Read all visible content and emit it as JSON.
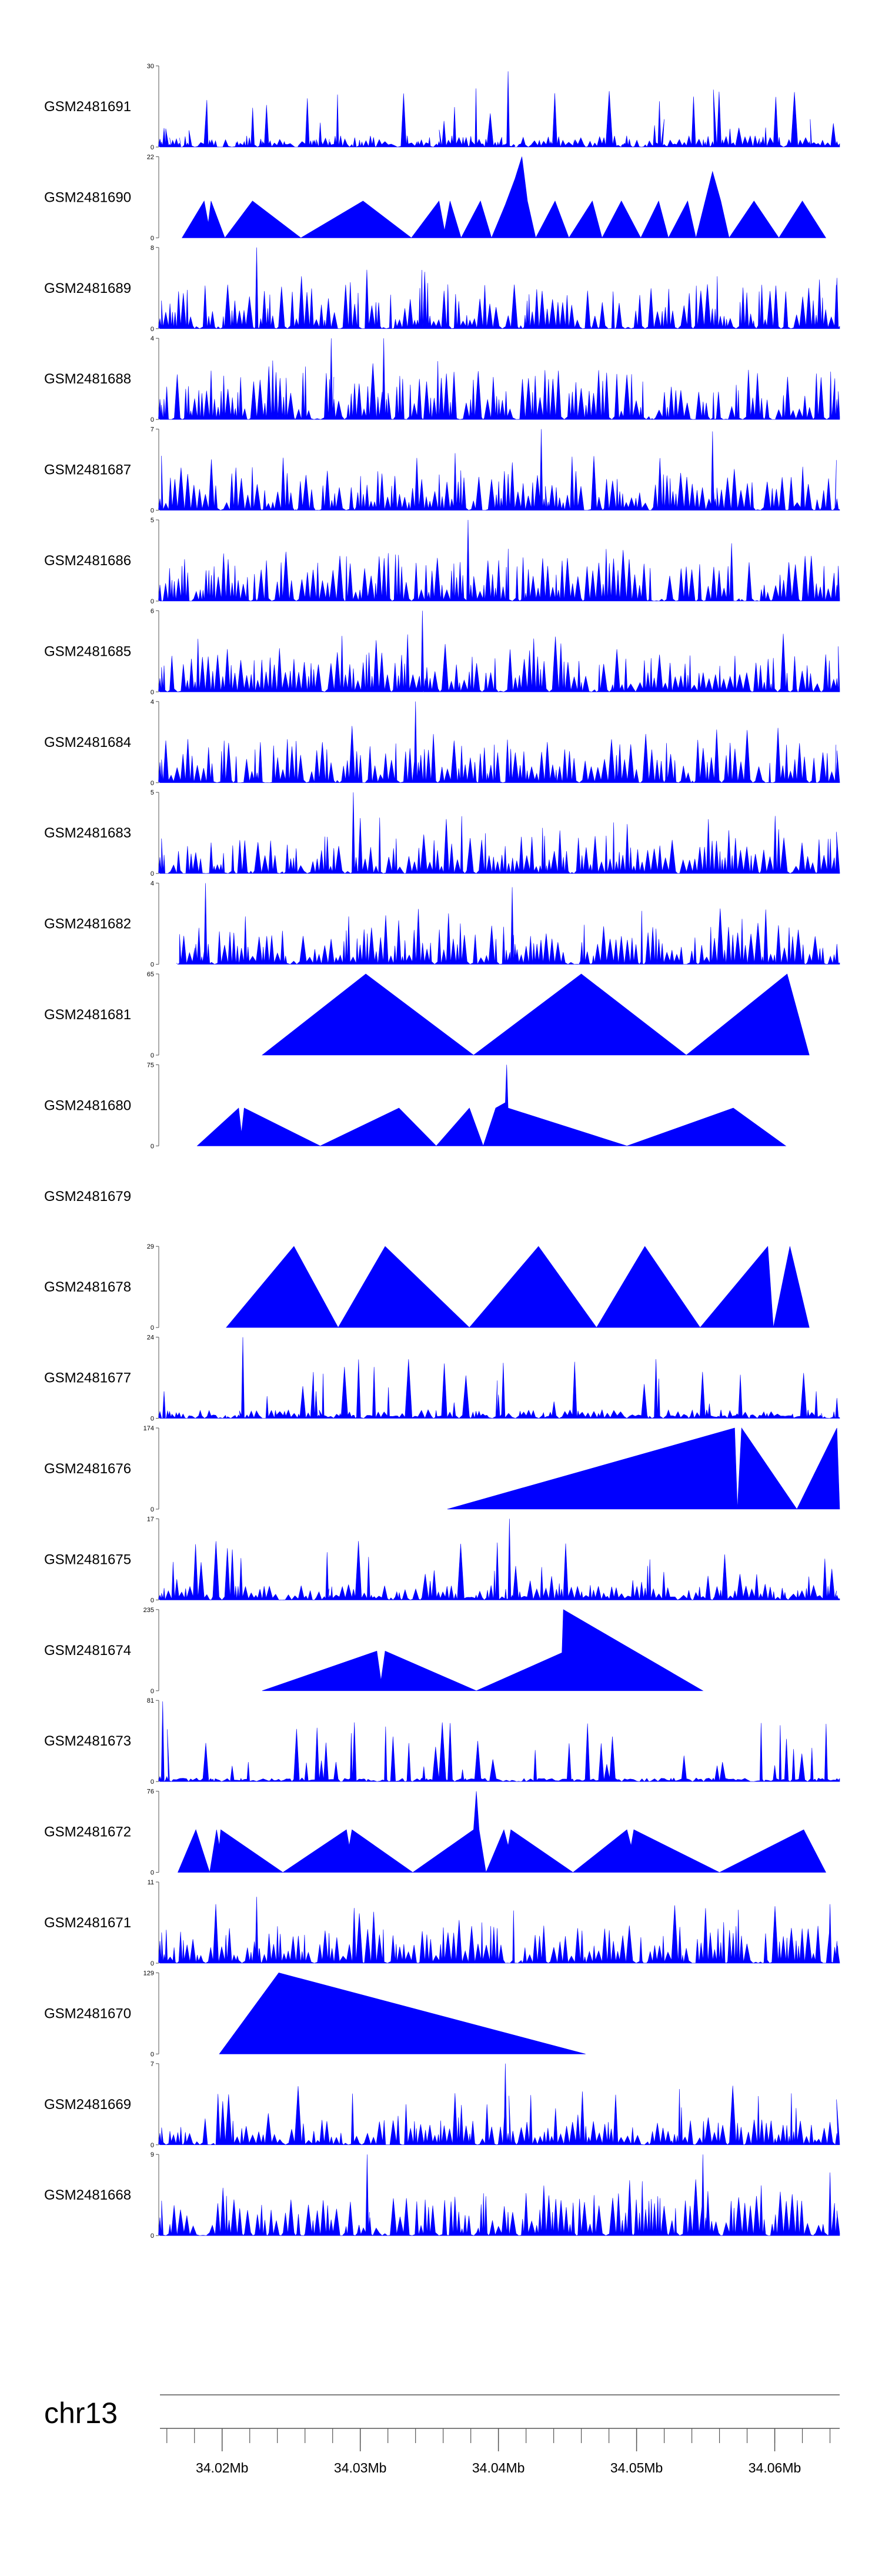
{
  "chart_data": {
    "type": "area",
    "title": "",
    "chromosome": "chr13",
    "xlim_mb": [
      34.0155,
      34.0647
    ],
    "tick_labels": [
      "34.02Mb",
      "34.03Mb",
      "34.04Mb",
      "34.05Mb",
      "34.06Mb"
    ],
    "tick_values_mb": [
      34.02,
      34.03,
      34.04,
      34.05,
      34.06
    ],
    "minor_tick_step_mb": 0.002,
    "series_color": "#0000FF",
    "axis_color": "#555555",
    "tracks": [
      {
        "name": "GSM2481691",
        "ymax": "30",
        "ymin": "0",
        "style": "noise",
        "max": 30,
        "base": 0.09,
        "seed": 11,
        "points": [
          [
            34.0155,
            3
          ],
          [
            34.0158,
            7
          ],
          [
            34.0162,
            1
          ],
          [
            34.0169,
            1.5
          ],
          [
            34.0175,
            1.5
          ],
          [
            34.0191,
            2.5
          ],
          [
            34.0211,
            2
          ],
          [
            34.0228,
            3
          ],
          [
            34.0245,
            2
          ],
          [
            34.0267,
            2.5
          ],
          [
            34.0271,
            9
          ],
          [
            34.0278,
            2
          ],
          [
            34.0296,
            3.5
          ],
          [
            34.0342,
            2
          ],
          [
            34.0357,
            2
          ],
          [
            34.038,
            4
          ],
          [
            34.0404,
            1
          ],
          [
            34.0407,
            28
          ],
          [
            34.0411,
            1
          ],
          [
            34.0438,
            2
          ],
          [
            34.0455,
            2.5
          ],
          [
            34.049,
            1
          ],
          [
            34.0513,
            8
          ],
          [
            34.052,
            1
          ],
          [
            34.0555,
            2
          ],
          [
            34.059,
            2
          ],
          [
            34.0625,
            2
          ],
          [
            34.0645,
            2
          ]
        ]
      },
      {
        "name": "GSM2481690",
        "ymax": "22",
        "ymin": "0",
        "style": "wide",
        "points": [
          [
            34.0171,
            0
          ],
          [
            34.0187,
            10
          ],
          [
            34.019,
            4
          ],
          [
            34.0192,
            10
          ],
          [
            34.0202,
            0
          ],
          [
            34.0222,
            10
          ],
          [
            34.0257,
            0
          ],
          [
            34.0302,
            10
          ],
          [
            34.0337,
            0
          ],
          [
            34.0357,
            10
          ],
          [
            34.0361,
            2
          ],
          [
            34.0365,
            10
          ],
          [
            34.0373,
            0
          ],
          [
            34.0387,
            10
          ],
          [
            34.0395,
            0
          ],
          [
            34.0405,
            9
          ],
          [
            34.0412,
            16
          ],
          [
            34.0417,
            22
          ],
          [
            34.0421,
            10
          ],
          [
            34.0427,
            0
          ],
          [
            34.0441,
            10
          ],
          [
            34.0451,
            0
          ],
          [
            34.0468,
            10
          ],
          [
            34.0475,
            0
          ],
          [
            34.0489,
            10
          ],
          [
            34.0503,
            0
          ],
          [
            34.0516,
            10
          ],
          [
            34.0523,
            0
          ],
          [
            34.0537,
            10
          ],
          [
            34.0543,
            0
          ],
          [
            34.0555,
            18
          ],
          [
            34.0561,
            10
          ],
          [
            34.0567,
            0
          ],
          [
            34.0585,
            10
          ],
          [
            34.0603,
            0
          ],
          [
            34.062,
            10
          ],
          [
            34.0637,
            0
          ]
        ]
      },
      {
        "name": "GSM2481689",
        "ymax": "8",
        "ymin": "0",
        "style": "noise",
        "max": 8,
        "base": 0.35,
        "seed": 23,
        "points": [
          [
            34.0155,
            1
          ],
          [
            34.0225,
            8
          ],
          [
            34.0228,
            1
          ],
          [
            34.0645,
            5
          ]
        ]
      },
      {
        "name": "GSM2481688",
        "ymax": "4",
        "ymin": "0",
        "style": "noise",
        "max": 4,
        "base": 0.4,
        "seed": 37,
        "points": [
          [
            34.0155,
            1
          ],
          [
            34.0279,
            4
          ],
          [
            34.0281,
            1
          ],
          [
            34.0317,
            4
          ],
          [
            34.0319,
            1
          ],
          [
            34.0645,
            1
          ]
        ]
      },
      {
        "name": "GSM2481687",
        "ymax": "7",
        "ymin": "0",
        "style": "noise",
        "max": 7,
        "base": 0.32,
        "seed": 41,
        "points": [
          [
            34.0155,
            1
          ],
          [
            34.0431,
            7
          ],
          [
            34.0433,
            1
          ],
          [
            34.0555,
            6.8
          ],
          [
            34.0557,
            1
          ],
          [
            34.0645,
            1
          ]
        ]
      },
      {
        "name": "GSM2481686",
        "ymax": "5",
        "ymin": "0",
        "style": "noise",
        "max": 5,
        "base": 0.38,
        "seed": 53,
        "points": [
          [
            34.0155,
            1
          ],
          [
            34.0378,
            5
          ],
          [
            34.038,
            1
          ],
          [
            34.0645,
            1
          ]
        ]
      },
      {
        "name": "GSM2481685",
        "ymax": "6",
        "ymin": "0",
        "style": "noise",
        "max": 6,
        "base": 0.3,
        "seed": 61,
        "points": [
          [
            34.0155,
            1
          ],
          [
            34.0345,
            6
          ],
          [
            34.0347,
            1
          ],
          [
            34.0645,
            1
          ]
        ]
      },
      {
        "name": "GSM2481684",
        "ymax": "4",
        "ymin": "0",
        "style": "noise",
        "max": 4,
        "base": 0.35,
        "seed": 71,
        "points": [
          [
            34.0155,
            1
          ],
          [
            34.034,
            4
          ],
          [
            34.0342,
            1
          ],
          [
            34.0645,
            1
          ]
        ]
      },
      {
        "name": "GSM2481683",
        "ymax": "5",
        "ymin": "0",
        "style": "noise",
        "max": 5,
        "base": 0.3,
        "seed": 79,
        "points": [
          [
            34.0155,
            1
          ],
          [
            34.0295,
            5
          ],
          [
            34.0297,
            1
          ],
          [
            34.0645,
            2
          ]
        ]
      },
      {
        "name": "GSM2481682",
        "ymax": "4",
        "ymin": "0",
        "style": "noise",
        "max": 4,
        "base": 0.3,
        "seed": 89,
        "start": 34.0168,
        "points": [
          [
            34.0168,
            0
          ],
          [
            34.0181,
            1
          ],
          [
            34.0188,
            4
          ],
          [
            34.019,
            1
          ],
          [
            34.041,
            3.8
          ],
          [
            34.0412,
            1
          ],
          [
            34.0645,
            1
          ]
        ]
      },
      {
        "name": "GSM2481681",
        "ymax": "65",
        "ymin": "0",
        "style": "wide",
        "points": [
          [
            34.0229,
            0
          ],
          [
            34.0304,
            65
          ],
          [
            34.0382,
            0
          ],
          [
            34.046,
            65
          ],
          [
            34.0536,
            0
          ],
          [
            34.0609,
            65
          ],
          [
            34.0625,
            0
          ]
        ]
      },
      {
        "name": "GSM2481680",
        "ymax": "75",
        "ymin": "0",
        "style": "wide",
        "points": [
          [
            34.0182,
            0
          ],
          [
            34.0212,
            35
          ],
          [
            34.0214,
            12
          ],
          [
            34.0216,
            35
          ],
          [
            34.0271,
            0
          ],
          [
            34.0328,
            35
          ],
          [
            34.0355,
            0
          ],
          [
            34.0379,
            35
          ],
          [
            34.0381,
            28
          ],
          [
            34.0389,
            0
          ],
          [
            34.0398,
            35
          ],
          [
            34.0405,
            40
          ],
          [
            34.0406,
            75
          ],
          [
            34.0407,
            35
          ],
          [
            34.0493,
            0
          ],
          [
            34.057,
            35
          ],
          [
            34.0608,
            0
          ]
        ]
      },
      {
        "name": "GSM2481679",
        "ymax": "",
        "ymin": "",
        "style": "empty",
        "points": []
      },
      {
        "name": "GSM2481678",
        "ymax": "29",
        "ymin": "0",
        "style": "wide",
        "points": [
          [
            34.0203,
            0
          ],
          [
            34.0252,
            29
          ],
          [
            34.0284,
            0
          ],
          [
            34.0318,
            29
          ],
          [
            34.0379,
            0
          ],
          [
            34.0429,
            29
          ],
          [
            34.0471,
            0
          ],
          [
            34.0506,
            29
          ],
          [
            34.0546,
            0
          ],
          [
            34.0595,
            29
          ],
          [
            34.0599,
            0
          ],
          [
            34.0611,
            29
          ],
          [
            34.0625,
            0
          ]
        ]
      },
      {
        "name": "GSM2481677",
        "ymax": "24",
        "ymin": "0",
        "style": "noise",
        "max": 24,
        "base": 0.07,
        "seed": 97,
        "points": [
          [
            34.0155,
            2
          ],
          [
            34.0158,
            8
          ],
          [
            34.0162,
            2
          ],
          [
            34.0212,
            1
          ],
          [
            34.0215,
            24
          ],
          [
            34.0218,
            1
          ],
          [
            34.0268,
            8
          ],
          [
            34.027,
            1
          ],
          [
            34.04,
            7
          ],
          [
            34.0402,
            1
          ],
          [
            34.063,
            8
          ],
          [
            34.0633,
            1
          ],
          [
            34.0645,
            6
          ]
        ]
      },
      {
        "name": "GSM2481676",
        "ymax": "174",
        "ymin": "0",
        "style": "wide",
        "points": [
          [
            34.0363,
            0
          ],
          [
            34.0571,
            174
          ],
          [
            34.0573,
            0
          ],
          [
            34.0576,
            174
          ],
          [
            34.0616,
            0
          ],
          [
            34.0645,
            174
          ],
          [
            34.0647,
            0
          ]
        ]
      },
      {
        "name": "GSM2481675",
        "ymax": "17",
        "ymin": "0",
        "style": "noise",
        "max": 17,
        "base": 0.12,
        "seed": 103,
        "points": [
          [
            34.0155,
            1
          ],
          [
            34.0276,
            10
          ],
          [
            34.0278,
            1
          ],
          [
            34.0306,
            9
          ],
          [
            34.0308,
            1
          ],
          [
            34.0408,
            17
          ],
          [
            34.041,
            1
          ],
          [
            34.0645,
            1
          ]
        ]
      },
      {
        "name": "GSM2481674",
        "ymax": "235",
        "ymin": "0",
        "style": "wide",
        "points": [
          [
            34.0229,
            0
          ],
          [
            34.0312,
            115
          ],
          [
            34.0315,
            30
          ],
          [
            34.0318,
            115
          ],
          [
            34.0384,
            0
          ],
          [
            34.0446,
            110
          ],
          [
            34.0447,
            235
          ],
          [
            34.0548,
            0
          ]
        ]
      },
      {
        "name": "GSM2481673",
        "ymax": "81",
        "ymin": "0",
        "style": "noise",
        "max": 81,
        "base": 0.03,
        "seed": 109,
        "points": [
          [
            34.0155,
            5
          ],
          [
            34.0157,
            80
          ],
          [
            34.016,
            5
          ],
          [
            34.0346,
            15
          ],
          [
            34.0348,
            3
          ],
          [
            34.0374,
            12
          ],
          [
            34.0376,
            3
          ],
          [
            34.0645,
            3
          ]
        ]
      },
      {
        "name": "GSM2481672",
        "ymax": "76",
        "ymin": "0",
        "style": "wide",
        "points": [
          [
            34.0168,
            0
          ],
          [
            34.0181,
            40
          ],
          [
            34.0191,
            0
          ],
          [
            34.0196,
            40
          ],
          [
            34.0198,
            25
          ],
          [
            34.0199,
            40
          ],
          [
            34.0244,
            0
          ],
          [
            34.029,
            40
          ],
          [
            34.0292,
            25
          ],
          [
            34.0294,
            40
          ],
          [
            34.0338,
            0
          ],
          [
            34.0382,
            40
          ],
          [
            34.0384,
            76
          ],
          [
            34.0386,
            40
          ],
          [
            34.0391,
            0
          ],
          [
            34.0404,
            40
          ],
          [
            34.0407,
            25
          ],
          [
            34.0409,
            40
          ],
          [
            34.0454,
            0
          ],
          [
            34.0493,
            40
          ],
          [
            34.0496,
            25
          ],
          [
            34.0498,
            40
          ],
          [
            34.056,
            0
          ],
          [
            34.0621,
            40
          ],
          [
            34.0637,
            0
          ]
        ]
      },
      {
        "name": "GSM2481671",
        "ymax": "11",
        "ymin": "0",
        "style": "noise",
        "max": 11,
        "base": 0.3,
        "seed": 127,
        "points": [
          [
            34.0155,
            3
          ],
          [
            34.0225,
            9
          ],
          [
            34.0227,
            2
          ],
          [
            34.064,
            8
          ],
          [
            34.0645,
            3
          ]
        ]
      },
      {
        "name": "GSM2481670",
        "ymax": "129",
        "ymin": "0",
        "style": "wide",
        "points": [
          [
            34.0198,
            0
          ],
          [
            34.0241,
            129
          ],
          [
            34.0463,
            0
          ]
        ]
      },
      {
        "name": "GSM2481669",
        "ymax": "7",
        "ymin": "0",
        "style": "noise",
        "max": 7,
        "base": 0.2,
        "seed": 137,
        "points": [
          [
            34.0155,
            1
          ],
          [
            34.0405,
            7
          ],
          [
            34.0407,
            1
          ],
          [
            34.0645,
            1
          ]
        ]
      },
      {
        "name": "GSM2481668",
        "ymax": "9",
        "ymin": "0",
        "style": "noise",
        "max": 9,
        "base": 0.32,
        "seed": 149,
        "points": [
          [
            34.0155,
            2
          ],
          [
            34.0305,
            9
          ],
          [
            34.0307,
            2
          ],
          [
            34.0548,
            9
          ],
          [
            34.055,
            2
          ],
          [
            34.064,
            7
          ],
          [
            34.0645,
            2
          ]
        ]
      }
    ]
  }
}
